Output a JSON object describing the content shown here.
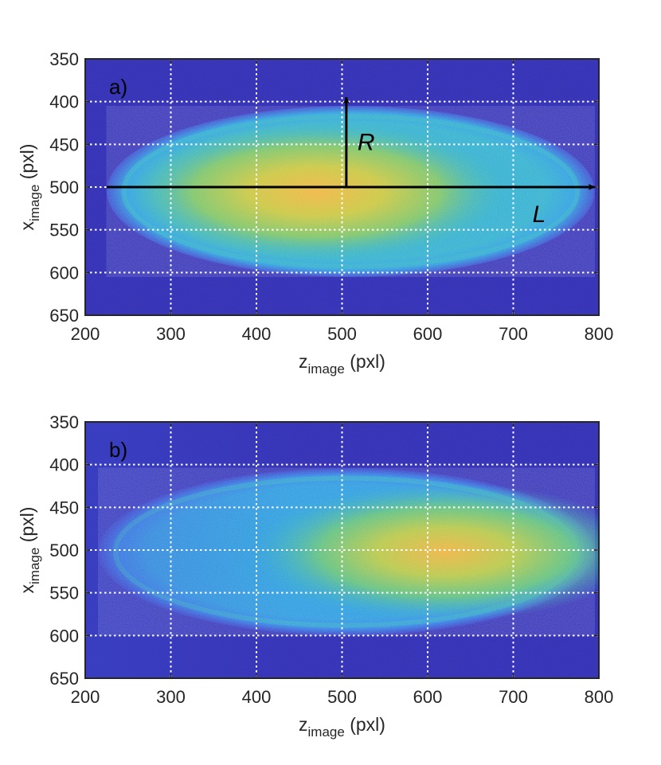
{
  "chart_data": [
    {
      "type": "heatmap",
      "panel_label": "a)",
      "xlabel": {
        "main": "z",
        "sub": "image",
        "unit": " (pxl)"
      },
      "ylabel": {
        "main": "x",
        "sub": "image",
        "unit": " (pxl)"
      },
      "xlim": [
        200,
        800
      ],
      "ylim": [
        350,
        650
      ],
      "y_reversed": true,
      "xticks": [
        "200",
        "300",
        "400",
        "500",
        "600",
        "700",
        "800"
      ],
      "yticks": [
        "350",
        "400",
        "450",
        "500",
        "550",
        "600",
        "650"
      ],
      "grid": true,
      "grid_style": "dotted white",
      "colormap": [
        "#3b2fb0",
        "#2a6de6",
        "#1aa3d9",
        "#35c2a0",
        "#9ccc4a",
        "#f2b93a"
      ],
      "cloud": {
        "center_z": 510,
        "center_x": 505,
        "semi_axis_z": 285,
        "semi_axis_x": 100,
        "peak_z": 470
      },
      "annotations": [
        {
          "text": "R",
          "type": "arrow",
          "from": [
            505,
            500
          ],
          "to": [
            505,
            395
          ]
        },
        {
          "text": "L",
          "type": "arrow",
          "from": [
            225,
            500
          ],
          "to": [
            795,
            500
          ]
        }
      ]
    },
    {
      "type": "heatmap",
      "panel_label": "b)",
      "xlabel": {
        "main": "z",
        "sub": "image",
        "unit": " (pxl)"
      },
      "ylabel": {
        "main": "x",
        "sub": "image",
        "unit": " (pxl)"
      },
      "xlim": [
        200,
        800
      ],
      "ylim": [
        350,
        650
      ],
      "y_reversed": true,
      "xticks": [
        "200",
        "300",
        "400",
        "500",
        "600",
        "700",
        "800"
      ],
      "yticks": [
        "350",
        "400",
        "450",
        "500",
        "550",
        "600",
        "650"
      ],
      "grid": true,
      "grid_style": "dotted white",
      "colormap": [
        "#3b2fb0",
        "#2a6de6",
        "#1aa3d9",
        "#35c2a0",
        "#9ccc4a",
        "#f2b93a"
      ],
      "cloud": {
        "center_z": 505,
        "center_x": 502,
        "semi_axis_z": 290,
        "semi_axis_x": 98,
        "peak_z": 620
      },
      "annotations": []
    }
  ]
}
